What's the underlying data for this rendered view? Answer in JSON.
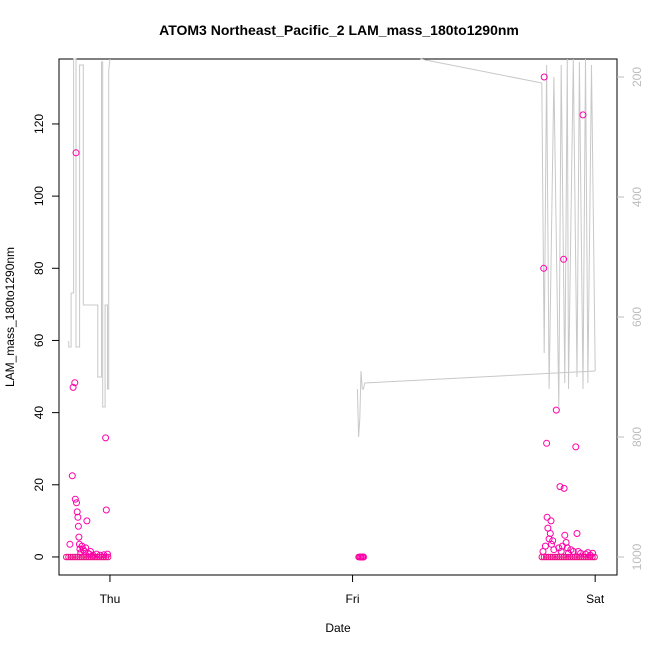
{
  "chart_data": {
    "type": "scatter",
    "title": "ATOM3 Northeast_Pacific_2 LAM_mass_180to1290nm",
    "xlabel": "Date",
    "ylabel": "LAM_mass_180to1290nm",
    "x_ticks": [
      {
        "label": "Thu",
        "value": 1.0
      },
      {
        "label": "Fri",
        "value": 2.0
      },
      {
        "label": "Sat",
        "value": 3.0
      }
    ],
    "xlim": [
      0.79,
      3.09
    ],
    "ylim": [
      -5,
      138
    ],
    "y_ticks": [
      0,
      20,
      40,
      60,
      80,
      100,
      120
    ],
    "y2_ticks": [
      200,
      400,
      600,
      800,
      1000
    ],
    "y2lim": [
      1030,
      170
    ],
    "grid": false,
    "colors": {
      "points": "#ff00aa",
      "points_dense": "#ee1188",
      "pressure_line": "#c8c8c8",
      "right_axis": "#bdbdbd"
    },
    "series": [
      {
        "type": "scatter",
        "points": [
          [
            0.835,
            3.5
          ],
          [
            0.845,
            22.5
          ],
          [
            0.848,
            47
          ],
          [
            0.855,
            48.3
          ],
          [
            0.857,
            16
          ],
          [
            0.86,
            112
          ],
          [
            0.862,
            15
          ],
          [
            0.865,
            12.5
          ],
          [
            0.868,
            11
          ],
          [
            0.87,
            8.5
          ],
          [
            0.872,
            5.5
          ],
          [
            0.874,
            3.5
          ],
          [
            0.876,
            2.2
          ],
          [
            0.88,
            1.2
          ],
          [
            0.885,
            3
          ],
          [
            0.89,
            2
          ],
          [
            0.895,
            1.5
          ],
          [
            0.9,
            2.5
          ],
          [
            0.905,
            10
          ],
          [
            0.91,
            1
          ],
          [
            0.915,
            0.8
          ],
          [
            0.92,
            1.5
          ],
          [
            0.93,
            0.5
          ],
          [
            0.945,
            0.8
          ],
          [
            0.96,
            0.5
          ],
          [
            0.975,
            0.6
          ],
          [
            0.982,
            33
          ],
          [
            0.985,
            13
          ],
          [
            0.99,
            0.8
          ],
          [
            2.03,
            0
          ],
          [
            2.035,
            0
          ],
          [
            2.04,
            0
          ],
          [
            2.045,
            0
          ],
          [
            2.785,
            1.5
          ],
          [
            2.788,
            80
          ],
          [
            2.79,
            133
          ],
          [
            2.795,
            3
          ],
          [
            2.8,
            31.5
          ],
          [
            2.802,
            11
          ],
          [
            2.805,
            8
          ],
          [
            2.81,
            5
          ],
          [
            2.815,
            6.5
          ],
          [
            2.818,
            10
          ],
          [
            2.82,
            3.5
          ],
          [
            2.825,
            4.5
          ],
          [
            2.83,
            2
          ],
          [
            2.84,
            40.7
          ],
          [
            2.85,
            2.5
          ],
          [
            2.855,
            19.5
          ],
          [
            2.86,
            1.5
          ],
          [
            2.865,
            3
          ],
          [
            2.87,
            82.5
          ],
          [
            2.872,
            19
          ],
          [
            2.875,
            6
          ],
          [
            2.88,
            4
          ],
          [
            2.885,
            2.5
          ],
          [
            2.89,
            1
          ],
          [
            2.9,
            2
          ],
          [
            2.91,
            1.5
          ],
          [
            2.92,
            30.5
          ],
          [
            2.925,
            6.5
          ],
          [
            2.93,
            1.5
          ],
          [
            2.94,
            1
          ],
          [
            2.95,
            122.5
          ],
          [
            2.96,
            0.8
          ],
          [
            2.97,
            1.2
          ],
          [
            2.98,
            0.5
          ],
          [
            2.99,
            1
          ]
        ],
        "zero_baseline_ranges": [
          [
            0.82,
            0.995
          ],
          [
            2.025,
            2.05
          ],
          [
            2.78,
            3.005
          ]
        ]
      },
      {
        "type": "line",
        "axis": "right",
        "x": [
          0.83,
          0.83,
          0.84,
          0.84,
          0.85,
          0.85,
          0.86,
          0.86,
          0.875,
          0.875,
          0.89,
          0.89,
          0.95,
          0.95,
          0.965,
          0.965,
          0.97,
          0.97,
          0.98,
          0.98,
          0.99,
          0.99,
          0.995,
          0.995,
          1.0,
          2.02,
          2.02,
          2.025,
          2.025,
          2.03,
          2.03,
          2.035,
          2.035,
          2.04,
          2.04,
          2.045,
          2.045,
          2.05,
          2.05,
          3.0,
          3.0,
          2.28,
          2.78,
          2.78,
          2.79,
          2.79,
          2.8,
          2.8,
          2.81,
          2.81,
          2.83,
          2.83,
          2.85,
          2.85,
          2.86,
          2.86,
          2.875,
          2.875,
          2.885,
          2.885,
          2.89,
          2.89,
          2.91,
          2.91,
          2.925,
          2.925,
          2.935,
          2.935,
          2.95,
          2.95,
          2.96,
          2.96,
          2.97,
          2.97,
          2.985,
          2.985,
          3.0
        ],
        "y": [
          640,
          650,
          650,
          560,
          560,
          170,
          170,
          650,
          650,
          180,
          180,
          580,
          580,
          700,
          700,
          175,
          175,
          750,
          750,
          580,
          580,
          720,
          720,
          190,
          170,
          720,
          720,
          800,
          800,
          770,
          770,
          690,
          690,
          720,
          720,
          720,
          720,
          710,
          710,
          690,
          690,
          170,
          210,
          210,
          660,
          660,
          180,
          180,
          720,
          720,
          200,
          200,
          750,
          750,
          180,
          180,
          710,
          710,
          170,
          170,
          720,
          720,
          170,
          170,
          700,
          700,
          175,
          175,
          720,
          720,
          170,
          170,
          710,
          710,
          180,
          180,
          690
        ],
        "segments": [
          [
            0,
            25
          ],
          [
            25,
            41
          ],
          [
            41,
            77
          ]
        ]
      }
    ]
  }
}
